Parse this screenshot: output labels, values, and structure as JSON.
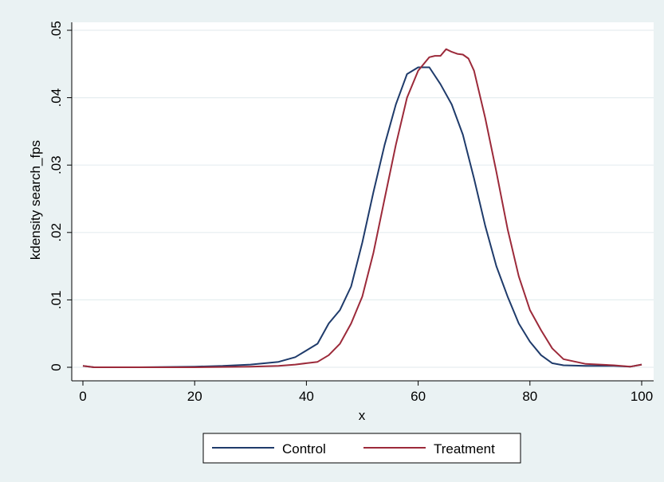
{
  "chart_data": {
    "type": "line",
    "xlabel": "x",
    "ylabel": "kdensity search_fps",
    "xlim": [
      0,
      100
    ],
    "ylim": [
      0,
      0.05
    ],
    "x_ticks": [
      0,
      20,
      40,
      60,
      80,
      100
    ],
    "x_tick_labels": [
      "0",
      "20",
      "40",
      "60",
      "80",
      "100"
    ],
    "y_ticks": [
      0,
      0.01,
      0.02,
      0.03,
      0.04,
      0.05
    ],
    "y_tick_labels": [
      "0",
      ".01",
      ".02",
      ".03",
      ".04",
      ".05"
    ],
    "grid": true,
    "legend_position": "bottom",
    "series": [
      {
        "name": "Control",
        "color": "#1f3b6b",
        "x": [
          0,
          2,
          10,
          20,
          25,
          30,
          35,
          38,
          40,
          42,
          44,
          46,
          48,
          50,
          52,
          54,
          56,
          58,
          60,
          62,
          64,
          66,
          68,
          70,
          72,
          74,
          76,
          78,
          80,
          82,
          84,
          86,
          90,
          95,
          98,
          100
        ],
        "y": [
          0.0002,
          0.0,
          0.0,
          0.0001,
          0.0002,
          0.0004,
          0.0008,
          0.0015,
          0.0025,
          0.0035,
          0.0065,
          0.0085,
          0.012,
          0.0185,
          0.026,
          0.033,
          0.039,
          0.0435,
          0.0445,
          0.0445,
          0.042,
          0.039,
          0.0345,
          0.028,
          0.021,
          0.015,
          0.0105,
          0.0065,
          0.0038,
          0.0018,
          0.0006,
          0.0003,
          0.0002,
          0.0002,
          0.0001,
          0.0004
        ]
      },
      {
        "name": "Treatment",
        "color": "#9c2a3a",
        "x": [
          0,
          2,
          10,
          20,
          30,
          35,
          38,
          40,
          42,
          44,
          46,
          48,
          50,
          52,
          54,
          56,
          58,
          60,
          62,
          63,
          64,
          65,
          66,
          67,
          68,
          69,
          70,
          72,
          74,
          76,
          78,
          80,
          82,
          84,
          86,
          90,
          95,
          98,
          100
        ],
        "y": [
          0.0002,
          0.0,
          0.0,
          0.0,
          0.0001,
          0.0002,
          0.0004,
          0.0006,
          0.0008,
          0.0018,
          0.0035,
          0.0065,
          0.0105,
          0.017,
          0.025,
          0.033,
          0.04,
          0.044,
          0.046,
          0.0462,
          0.0462,
          0.0472,
          0.0468,
          0.0465,
          0.0464,
          0.0458,
          0.044,
          0.037,
          0.029,
          0.0205,
          0.0135,
          0.0085,
          0.0055,
          0.0028,
          0.0012,
          0.0005,
          0.0003,
          0.0001,
          0.0004
        ]
      }
    ]
  }
}
